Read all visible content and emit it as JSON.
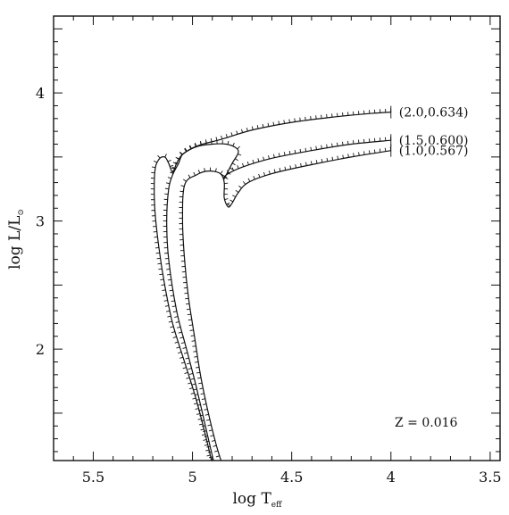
{
  "chart_data": {
    "type": "line",
    "title": "",
    "x_axis_reversed": true,
    "xlabel": {
      "base": "log T",
      "subscript": "eff"
    },
    "ylabel": {
      "base": "log L/L",
      "subscript": "⊙"
    },
    "xlim": [
      5.7,
      3.45
    ],
    "ylim": [
      1.13,
      4.6
    ],
    "xticks": [
      "5.5",
      "5",
      "4.5",
      "4",
      "3.5"
    ],
    "yticks": [
      "2",
      "3",
      "4"
    ],
    "annotation": "Z = 0.016",
    "grid": false,
    "series": [
      {
        "name": "(2.0,0.634)",
        "points": [
          [
            4.0,
            3.85
          ],
          [
            4.1,
            3.84
          ],
          [
            4.3,
            3.81
          ],
          [
            4.5,
            3.77
          ],
          [
            4.7,
            3.71
          ],
          [
            4.85,
            3.64
          ],
          [
            4.95,
            3.6
          ],
          [
            5.0,
            3.57
          ],
          [
            5.05,
            3.52
          ],
          [
            5.07,
            3.45
          ],
          [
            5.1,
            3.36
          ],
          [
            5.12,
            3.25
          ],
          [
            5.13,
            3.0
          ],
          [
            5.12,
            2.7
          ],
          [
            5.08,
            2.3
          ],
          [
            5.03,
            2.0
          ],
          [
            4.98,
            1.7
          ],
          [
            4.92,
            1.3
          ],
          [
            4.89,
            1.1
          ]
        ]
      },
      {
        "name": "(1.5,0.600)",
        "points": [
          [
            4.0,
            3.63
          ],
          [
            4.2,
            3.6
          ],
          [
            4.4,
            3.55
          ],
          [
            4.6,
            3.49
          ],
          [
            4.75,
            3.42
          ],
          [
            4.83,
            3.36
          ],
          [
            4.84,
            3.33
          ],
          [
            4.8,
            3.45
          ],
          [
            4.77,
            3.53
          ],
          [
            4.78,
            3.57
          ],
          [
            4.83,
            3.6
          ],
          [
            4.9,
            3.6
          ],
          [
            4.98,
            3.58
          ],
          [
            5.05,
            3.52
          ],
          [
            5.08,
            3.45
          ],
          [
            5.1,
            3.38
          ],
          [
            5.12,
            3.45
          ],
          [
            5.14,
            3.5
          ],
          [
            5.17,
            3.48
          ],
          [
            5.19,
            3.38
          ],
          [
            5.19,
            3.1
          ],
          [
            5.17,
            2.8
          ],
          [
            5.14,
            2.5
          ],
          [
            5.1,
            2.2
          ],
          [
            5.04,
            1.9
          ],
          [
            4.98,
            1.6
          ],
          [
            4.93,
            1.3
          ],
          [
            4.9,
            1.1
          ]
        ]
      },
      {
        "name": "(1.0,0.567)",
        "points": [
          [
            4.0,
            3.55
          ],
          [
            4.2,
            3.5
          ],
          [
            4.4,
            3.44
          ],
          [
            4.6,
            3.37
          ],
          [
            4.72,
            3.3
          ],
          [
            4.77,
            3.22
          ],
          [
            4.8,
            3.14
          ],
          [
            4.82,
            3.11
          ],
          [
            4.84,
            3.18
          ],
          [
            4.84,
            3.3
          ],
          [
            4.86,
            3.37
          ],
          [
            4.92,
            3.39
          ],
          [
            4.98,
            3.36
          ],
          [
            5.04,
            3.28
          ],
          [
            5.05,
            3.0
          ],
          [
            5.04,
            2.7
          ],
          [
            5.02,
            2.4
          ],
          [
            4.99,
            2.1
          ],
          [
            4.96,
            1.8
          ],
          [
            4.92,
            1.5
          ],
          [
            4.88,
            1.25
          ],
          [
            4.85,
            1.1
          ]
        ]
      }
    ]
  }
}
